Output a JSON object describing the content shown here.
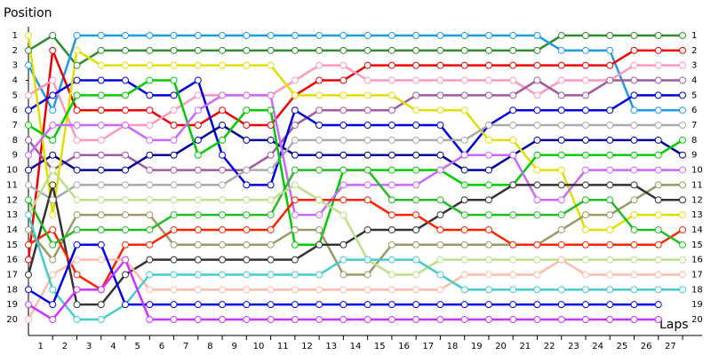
{
  "chart_data": {
    "type": "line",
    "y_title": "Position",
    "x_title": "Laps",
    "x": [
      0,
      1,
      2,
      3,
      4,
      5,
      6,
      7,
      8,
      9,
      10,
      11,
      12,
      13,
      14,
      15,
      16,
      17,
      18,
      19,
      20,
      21,
      22,
      23,
      24,
      25,
      26,
      27
    ],
    "xlim": [
      0,
      27
    ],
    "xticks": [
      1,
      2,
      3,
      4,
      5,
      6,
      7,
      8,
      9,
      10,
      11,
      12,
      13,
      14,
      15,
      16,
      17,
      18,
      19,
      20,
      21,
      22,
      23,
      24,
      25,
      26,
      27
    ],
    "ylim": [
      1,
      20
    ],
    "y_inverted": true,
    "yticks": [
      1,
      2,
      3,
      4,
      5,
      6,
      7,
      8,
      9,
      10,
      11,
      12,
      13,
      14,
      15,
      16,
      17,
      18,
      19,
      20
    ],
    "series": [
      {
        "color": "#2e8b2e",
        "values": [
          2,
          1,
          3,
          2,
          2,
          2,
          2,
          2,
          2,
          2,
          2,
          2,
          2,
          2,
          2,
          2,
          2,
          2,
          2,
          2,
          2,
          2,
          1,
          1,
          1,
          1,
          1,
          1
        ]
      },
      {
        "color": "#1e9be6",
        "values": [
          3,
          6,
          1,
          1,
          1,
          1,
          1,
          1,
          1,
          1,
          1,
          1,
          1,
          1,
          1,
          1,
          1,
          1,
          1,
          1,
          1,
          1,
          2,
          2,
          2,
          6,
          6,
          6
        ]
      },
      {
        "color": "#ee0000",
        "values": [
          16,
          2,
          6,
          6,
          6,
          6,
          7,
          7,
          6,
          7,
          7,
          5,
          4,
          4,
          3,
          3,
          3,
          3,
          3,
          3,
          3,
          3,
          3,
          3,
          3,
          2,
          2,
          2
        ]
      },
      {
        "color": "#ff99bb",
        "values": [
          5,
          4,
          8,
          8,
          7,
          7,
          6,
          5,
          5,
          5,
          5,
          4,
          3,
          3,
          4,
          4,
          4,
          4,
          4,
          4,
          4,
          5,
          4,
          4,
          4,
          3,
          3,
          3
        ]
      },
      {
        "color": "#a05aa0",
        "values": [
          8,
          10,
          9,
          9,
          9,
          10,
          10,
          10,
          10,
          10,
          9,
          7,
          6,
          6,
          6,
          6,
          5,
          5,
          5,
          5,
          5,
          4,
          5,
          5,
          4,
          4,
          4,
          4
        ]
      },
      {
        "color": "#0000dd",
        "values": [
          6,
          5,
          4,
          4,
          4,
          5,
          5,
          4,
          9,
          11,
          11,
          6,
          7,
          7,
          7,
          7,
          7,
          7,
          9,
          7,
          6,
          6,
          6,
          6,
          6,
          5,
          5,
          5
        ]
      },
      {
        "color": "#000099",
        "values": [
          10,
          9,
          10,
          10,
          10,
          9,
          9,
          8,
          7,
          8,
          8,
          9,
          9,
          9,
          9,
          9,
          9,
          9,
          10,
          10,
          9,
          8,
          8,
          8,
          8,
          8,
          8,
          9
        ]
      },
      {
        "color": "#e0e000",
        "values": [
          1,
          13,
          2,
          3,
          3,
          3,
          3,
          3,
          3,
          3,
          3,
          5,
          5,
          5,
          5,
          5,
          6,
          6,
          6,
          8,
          8,
          10,
          10,
          14,
          14,
          13,
          13,
          13
        ]
      },
      {
        "color": "#aaaaaa",
        "values": [
          11,
          12,
          11,
          11,
          11,
          11,
          11,
          11,
          11,
          10,
          10,
          8,
          8,
          8,
          8,
          8,
          8,
          8,
          8,
          7,
          7,
          7,
          7,
          7,
          7,
          7,
          7,
          7
        ]
      },
      {
        "color": "#00cc00",
        "values": [
          7,
          8,
          5,
          5,
          5,
          4,
          4,
          9,
          8,
          6,
          6,
          15,
          15,
          10,
          10,
          10,
          10,
          10,
          11,
          11,
          11,
          9,
          9,
          9,
          9,
          9,
          9,
          8
        ]
      },
      {
        "color": "#cc66ff",
        "values": [
          9,
          7,
          7,
          7,
          7,
          8,
          8,
          6,
          5,
          5,
          5,
          13,
          13,
          11,
          11,
          11,
          11,
          10,
          9,
          9,
          9,
          12,
          12,
          10,
          10,
          10,
          10,
          10
        ]
      },
      {
        "color": "#999966",
        "values": [
          14,
          16,
          13,
          13,
          13,
          13,
          15,
          15,
          15,
          15,
          15,
          14,
          14,
          17,
          17,
          15,
          15,
          15,
          15,
          15,
          15,
          15,
          14,
          13,
          13,
          12,
          11,
          11
        ]
      },
      {
        "color": "#333333",
        "values": [
          17,
          11,
          19,
          19,
          17,
          16,
          16,
          16,
          16,
          16,
          16,
          16,
          15,
          15,
          14,
          14,
          14,
          13,
          12,
          12,
          11,
          11,
          11,
          11,
          11,
          11,
          12,
          12
        ]
      },
      {
        "color": "#ff2200",
        "values": [
          15,
          14,
          17,
          18,
          15,
          15,
          14,
          14,
          14,
          14,
          14,
          12,
          12,
          12,
          12,
          13,
          13,
          14,
          14,
          14,
          15,
          15,
          15,
          15,
          15,
          15,
          15,
          14
        ]
      },
      {
        "color": "#22bb22",
        "values": [
          12,
          15,
          14,
          14,
          14,
          14,
          13,
          13,
          13,
          13,
          13,
          10,
          10,
          10,
          10,
          12,
          12,
          12,
          13,
          13,
          13,
          13,
          13,
          12,
          12,
          14,
          14,
          15
        ]
      },
      {
        "color": "#bbe088",
        "values": [
          13,
          10,
          12,
          12,
          12,
          12,
          12,
          12,
          12,
          12,
          12,
          11,
          12,
          13,
          16,
          17,
          17,
          16,
          16,
          16,
          16,
          16,
          16,
          16,
          16,
          16,
          16,
          16
        ]
      },
      {
        "color": "#ffbbaa",
        "values": [
          20,
          17,
          16,
          16,
          16,
          18,
          18,
          18,
          18,
          18,
          18,
          18,
          18,
          18,
          18,
          18,
          18,
          18,
          17,
          17,
          17,
          17,
          16,
          17,
          17,
          17,
          17,
          17
        ]
      },
      {
        "color": "#44cccc",
        "values": [
          13,
          18,
          20,
          20,
          19,
          17,
          17,
          17,
          17,
          17,
          17,
          17,
          17,
          16,
          16,
          16,
          16,
          17,
          18,
          18,
          18,
          18,
          18,
          18,
          18,
          18,
          18,
          18
        ]
      },
      {
        "color": "#0000ee",
        "values": [
          18,
          19,
          15,
          15,
          19,
          19,
          19,
          19,
          19,
          19,
          19,
          19,
          19,
          19,
          19,
          19,
          19,
          19,
          19,
          19,
          19,
          19,
          19,
          19,
          19,
          19,
          19,
          null
        ]
      },
      {
        "color": "#cc33ff",
        "values": [
          19,
          20,
          18,
          18,
          16,
          20,
          20,
          20,
          20,
          20,
          20,
          20,
          20,
          20,
          20,
          20,
          20,
          20,
          20,
          20,
          20,
          20,
          20,
          20,
          20,
          20,
          20,
          null
        ]
      }
    ]
  }
}
